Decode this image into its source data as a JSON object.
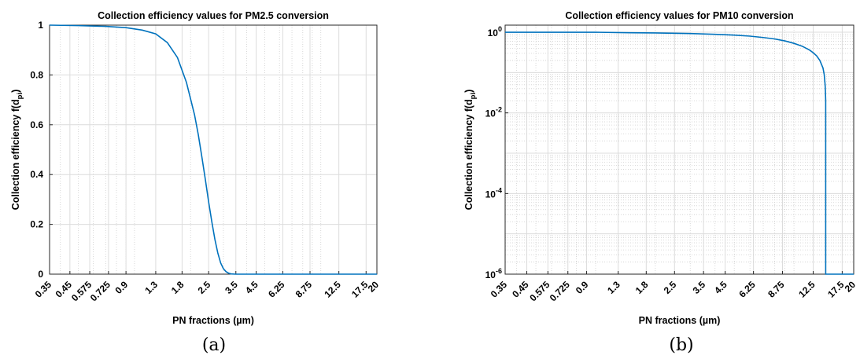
{
  "chart_data": [
    {
      "id": "a",
      "type": "line",
      "title": "Collection efficiency values for PM2.5 conversion",
      "xlabel": "PN fractions (µm)",
      "ylabel_main": "Collection efficiency f(d",
      "ylabel_sub": "pi",
      "ylabel_end": ")",
      "caption": "(a)",
      "xscale": "log",
      "yscale": "linear",
      "xlim": [
        0.35,
        20
      ],
      "ylim": [
        0,
        1
      ],
      "grid": true,
      "xticks": [
        "0.35",
        "0.45",
        "0.575",
        "0.725",
        "0.9",
        "1.3",
        "1.8",
        "2.5",
        "3.5",
        "4.5",
        "6.25",
        "8.75",
        "12.5",
        "17.5",
        "20"
      ],
      "yticks": [
        "0",
        "0.2",
        "0.4",
        "0.6",
        "0.8",
        "1"
      ],
      "line_color": "#0072BD",
      "series": [
        {
          "x": [
            0.35,
            0.5,
            0.7,
            0.9,
            1.1,
            1.3,
            1.5,
            1.7,
            1.9,
            2.1,
            2.2,
            2.3,
            2.4,
            2.5,
            2.6,
            2.7,
            2.8,
            2.9,
            3.0,
            3.1,
            3.2,
            3.3,
            3.5,
            5,
            10,
            20
          ],
          "y": [
            1.0,
            0.998,
            0.995,
            0.99,
            0.98,
            0.965,
            0.93,
            0.87,
            0.77,
            0.64,
            0.56,
            0.47,
            0.38,
            0.29,
            0.21,
            0.14,
            0.085,
            0.045,
            0.022,
            0.01,
            0.004,
            0.001,
            0,
            0,
            0,
            0
          ]
        }
      ]
    },
    {
      "id": "b",
      "type": "line",
      "title": "Collection efficiency values for PM10 conversion",
      "xlabel": "PN fractions (µm)",
      "ylabel_main": "Collection efficiency f(d",
      "ylabel_sub": "pi",
      "ylabel_end": ")",
      "caption": "(b)",
      "xscale": "log",
      "yscale": "log",
      "xlim": [
        0.35,
        20
      ],
      "ylim": [
        1e-06,
        1.5
      ],
      "grid": true,
      "xticks": [
        "0.35",
        "0.45",
        "0.575",
        "0.725",
        "0.9",
        "1.3",
        "1.8",
        "2.5",
        "3.5",
        "4.5",
        "6.25",
        "8.75",
        "12.5",
        "17.5",
        "20"
      ],
      "yticks": [
        {
          "base": "10",
          "exp": "0",
          "value": 1
        },
        {
          "base": "10",
          "exp": "-2",
          "value": 0.01
        },
        {
          "base": "10",
          "exp": "-4",
          "value": 0.0001
        },
        {
          "base": "10",
          "exp": "-6",
          "value": 1e-06
        }
      ],
      "line_color": "#0072BD",
      "series": [
        {
          "x": [
            0.35,
            1.0,
            1.5,
            2.0,
            3.0,
            4.0,
            5.0,
            6.0,
            7.0,
            8.0,
            9.0,
            10.0,
            11.0,
            12.0,
            12.5,
            13.0,
            13.5,
            14.0,
            14.2,
            14.35,
            14.4,
            14.45,
            14.45,
            20
          ],
          "y": [
            1.0,
            1.0,
            0.97,
            0.96,
            0.93,
            0.89,
            0.85,
            0.8,
            0.74,
            0.68,
            0.61,
            0.53,
            0.45,
            0.36,
            0.31,
            0.26,
            0.2,
            0.13,
            0.09,
            0.05,
            0.035,
            0.02,
            1e-06,
            1e-06
          ]
        }
      ]
    }
  ]
}
